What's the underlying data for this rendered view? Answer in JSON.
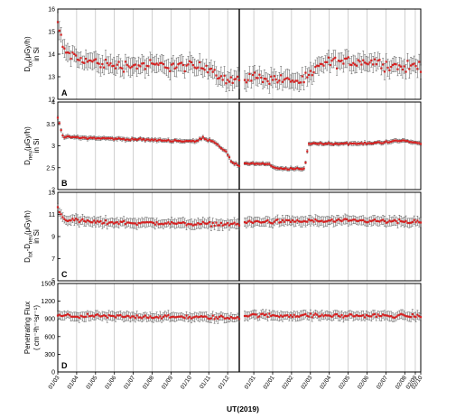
{
  "figure": {
    "xlabel": "UT(2019)",
    "colors": {
      "marker": "#d42020",
      "errorbar": "#555555",
      "gridline": "#b0b0b0",
      "axis": "#000000"
    }
  },
  "chart_data": [
    {
      "panel": "A",
      "type": "scatter",
      "ylabel_main": "D",
      "ylabel_sub": "tot",
      "ylabel_rest": "(μGy/h)",
      "ylabel_line2": "in Si",
      "ylim": [
        12,
        16
      ],
      "yticks": [
        "12",
        "13",
        "14",
        "15",
        "16"
      ],
      "ytick_values": [
        12,
        13,
        14,
        15,
        16
      ],
      "segments": [
        {
          "start": 0,
          "end": 0.5,
          "levels": [
            [
              0,
              15.4
            ],
            [
              0.015,
              14.2
            ],
            [
              0.05,
              13.8
            ],
            [
              0.15,
              13.5
            ],
            [
              0.3,
              13.5
            ],
            [
              0.42,
              13.4
            ],
            [
              0.46,
              12.9
            ],
            [
              0.5,
              12.8
            ]
          ],
          "noise": 0.35,
          "err": 0.35
        },
        {
          "start": 0.515,
          "end": 1.0,
          "levels": [
            [
              0.515,
              13.0
            ],
            [
              0.6,
              12.9
            ],
            [
              0.68,
              12.8
            ],
            [
              0.73,
              13.6
            ],
            [
              0.85,
              13.7
            ],
            [
              0.95,
              13.4
            ],
            [
              1.0,
              13.5
            ]
          ],
          "noise": 0.35,
          "err": 0.35
        }
      ]
    },
    {
      "panel": "B",
      "type": "scatter",
      "ylabel_main": "D",
      "ylabel_sub": "neu",
      "ylabel_rest": "(μGy/h)",
      "ylabel_line2": "in Si",
      "ylim": [
        2,
        4
      ],
      "yticks": [
        "2",
        "2.5",
        "3",
        "3.5",
        "4"
      ],
      "ytick_values": [
        2,
        2.5,
        3,
        3.5,
        4
      ],
      "segments": [
        {
          "start": 0,
          "end": 0.5,
          "levels": [
            [
              0,
              3.65
            ],
            [
              0.015,
              3.2
            ],
            [
              0.2,
              3.15
            ],
            [
              0.38,
              3.1
            ],
            [
              0.4,
              3.18
            ],
            [
              0.43,
              3.1
            ],
            [
              0.465,
              2.85
            ],
            [
              0.48,
              2.6
            ],
            [
              0.5,
              2.55
            ]
          ],
          "noise": 0.03,
          "err": 0.04
        },
        {
          "start": 0.515,
          "end": 1.0,
          "levels": [
            [
              0.515,
              2.6
            ],
            [
              0.58,
              2.58
            ],
            [
              0.6,
              2.48
            ],
            [
              0.68,
              2.47
            ],
            [
              0.69,
              3.05
            ],
            [
              0.85,
              3.05
            ],
            [
              0.95,
              3.12
            ],
            [
              1.0,
              3.05
            ]
          ],
          "noise": 0.03,
          "err": 0.04
        }
      ]
    },
    {
      "panel": "C",
      "type": "scatter",
      "ylabel_main": "D",
      "ylabel_sub": "tot",
      "ylabel_rest": "-D",
      "ylabel_sub2": "neu",
      "ylabel_rest2": "(μGy/h)",
      "ylabel_line2": "in Si",
      "ylim": [
        5,
        13
      ],
      "yticks": [
        "5",
        "7",
        "9",
        "11",
        "13"
      ],
      "ytick_values": [
        5,
        7,
        9,
        11,
        13
      ],
      "segments": [
        {
          "start": 0,
          "end": 0.5,
          "levels": [
            [
              0,
              11.6
            ],
            [
              0.015,
              10.6
            ],
            [
              0.1,
              10.3
            ],
            [
              0.3,
              10.2
            ],
            [
              0.5,
              10.1
            ]
          ],
          "noise": 0.25,
          "err": 0.4
        },
        {
          "start": 0.515,
          "end": 1.0,
          "levels": [
            [
              0.515,
              10.3
            ],
            [
              0.7,
              10.4
            ],
            [
              0.85,
              10.4
            ],
            [
              1.0,
              10.3
            ]
          ],
          "noise": 0.25,
          "err": 0.4
        }
      ]
    },
    {
      "panel": "D",
      "type": "scatter",
      "ylabel_main": "Penetrating Flux",
      "ylabel_line2": "( cm⁻²h⁻¹sr⁻¹)",
      "ylim": [
        0,
        1500
      ],
      "yticks": [
        "0",
        "300",
        "600",
        "900",
        "1200",
        "1500"
      ],
      "ytick_values": [
        0,
        300,
        600,
        900,
        1200,
        1500
      ],
      "segments": [
        {
          "start": 0,
          "end": 0.5,
          "levels": [
            [
              0,
              950
            ],
            [
              0.5,
              920
            ]
          ],
          "noise": 45,
          "err": 70
        },
        {
          "start": 0.515,
          "end": 1.0,
          "levels": [
            [
              0.515,
              960
            ],
            [
              1.0,
              950
            ]
          ],
          "noise": 45,
          "err": 70
        }
      ]
    }
  ],
  "x_axis": {
    "ticks": [
      "01/03",
      "01/04",
      "01/05",
      "01/06",
      "01/07",
      "01/08",
      "01/09",
      "01/10",
      "01/11",
      "01/12",
      "01/31",
      "02/01",
      "02/02",
      "02/03",
      "02/04",
      "02/05",
      "02/06",
      "02/07",
      "02/08",
      "02/09",
      "02/10"
    ],
    "tick_fractions": [
      0.0,
      0.052,
      0.104,
      0.156,
      0.208,
      0.26,
      0.312,
      0.364,
      0.416,
      0.468,
      0.54,
      0.592,
      0.644,
      0.696,
      0.748,
      0.8,
      0.852,
      0.904,
      0.956,
      0.985,
      1.0
    ],
    "break_fraction": 0.5
  }
}
